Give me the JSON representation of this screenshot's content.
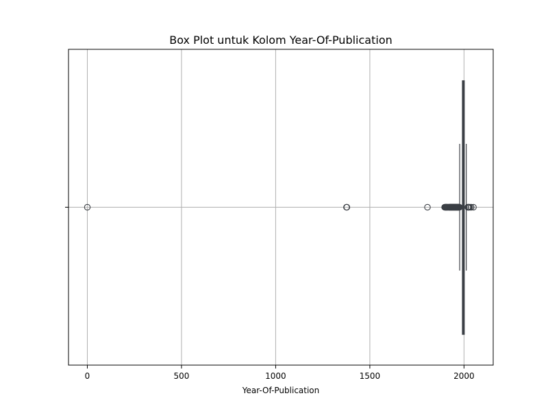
{
  "chart_data": {
    "type": "box",
    "title": "Box Plot untuk Kolom Year-Of-Publication",
    "xlabel": "Year-Of-Publication",
    "ylabel": "",
    "xlim": [
      -100,
      2155
    ],
    "xticks": [
      0,
      500,
      1000,
      1500,
      2000
    ],
    "xtick_labels": [
      "0",
      "500",
      "1000",
      "1500",
      "2000"
    ],
    "grid": true,
    "orientation": "horizontal",
    "box": {
      "q1": 1992,
      "median": 1997,
      "q3": 2001,
      "whisker_low": 1977,
      "whisker_high": 2012
    },
    "outliers": [
      0,
      1376,
      1378,
      1806,
      1897,
      1900,
      1901,
      1902,
      1904,
      1906,
      1908,
      1909,
      1910,
      1911,
      1914,
      1917,
      1919,
      1920,
      1923,
      1924,
      1925,
      1926,
      1927,
      1928,
      1929,
      1930,
      1931,
      1932,
      1933,
      1934,
      1935,
      1936,
      1937,
      1938,
      1939,
      1940,
      1941,
      1942,
      1943,
      1944,
      1945,
      1946,
      1947,
      1948,
      1949,
      1950,
      1951,
      1952,
      1953,
      1954,
      1955,
      1956,
      1957,
      1958,
      1959,
      1960,
      1961,
      1962,
      1963,
      1964,
      1965,
      1966,
      1967,
      1968,
      1969,
      1970,
      1971,
      1972,
      1973,
      1974,
      1975,
      1976,
      2020,
      2021,
      2024,
      2026,
      2030,
      2037,
      2038,
      2050
    ],
    "colors": {
      "box_edge": "#3b3f45",
      "grid": "#b0b0b0",
      "outlier_edge": "#3b3f45"
    }
  }
}
